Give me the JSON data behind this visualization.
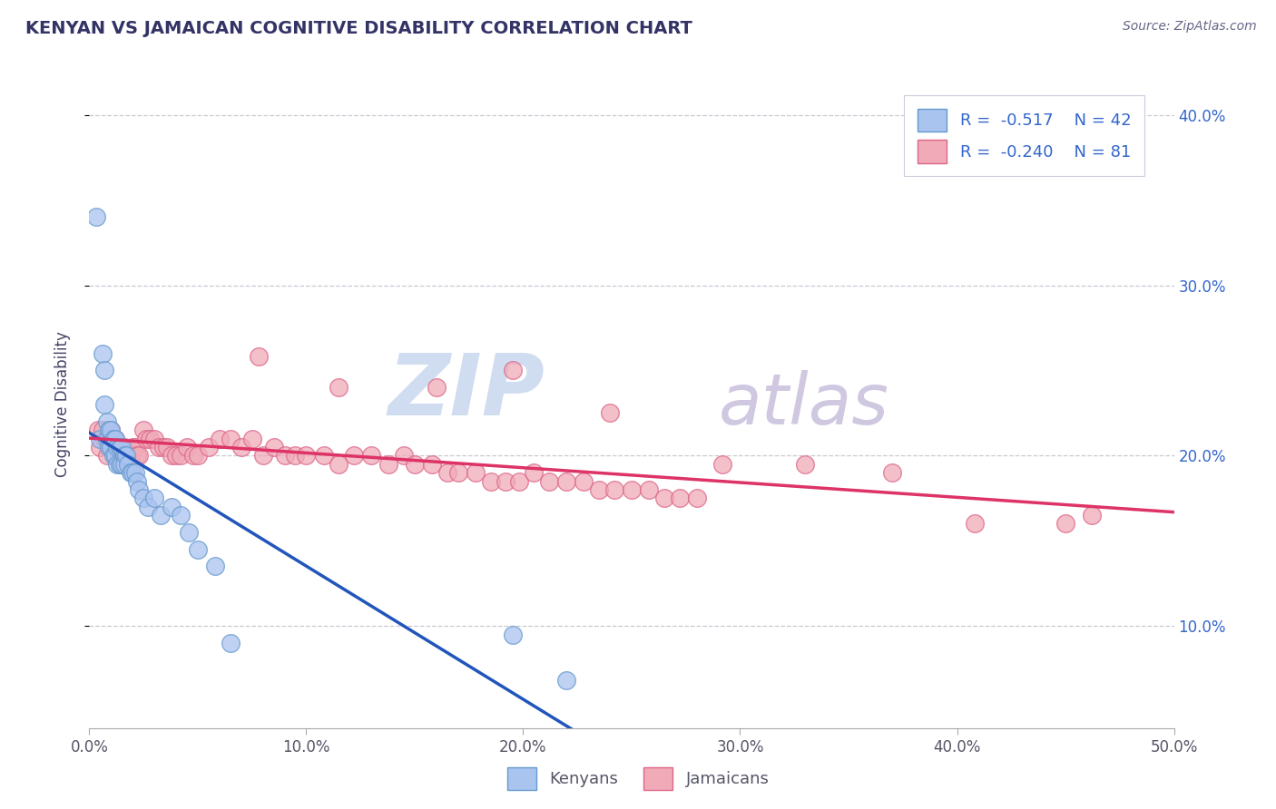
{
  "title": "KENYAN VS JAMAICAN COGNITIVE DISABILITY CORRELATION CHART",
  "source": "Source: ZipAtlas.com",
  "ylabel": "Cognitive Disability",
  "xlim": [
    0.0,
    0.5
  ],
  "ylim": [
    0.04,
    0.42
  ],
  "xticks": [
    0.0,
    0.1,
    0.2,
    0.3,
    0.4,
    0.5
  ],
  "xtick_labels": [
    "0.0%",
    "10.0%",
    "20.0%",
    "30.0%",
    "40.0%",
    "50.0%"
  ],
  "yticks": [
    0.1,
    0.2,
    0.3,
    0.4
  ],
  "ytick_labels": [
    "10.0%",
    "20.0%",
    "30.0%",
    "40.0%"
  ],
  "grid_color": "#c8c8d4",
  "background_color": "#ffffff",
  "kenyan_color": "#aac4f0",
  "jamaican_color": "#f0aab8",
  "kenyan_edge": "#6699cc",
  "jamaican_edge": "#dd6688",
  "regression_kenyan_color": "#2255bb",
  "regression_jamaican_color": "#dd3366",
  "regression_extension_color": "#99bbdd",
  "legend_r_kenyan": "R =  -0.517",
  "legend_n_kenyan": "N = 42",
  "legend_r_jamaican": "R =  -0.240",
  "legend_n_jamaican": "N = 81",
  "kenyan_x": [
    0.003,
    0.005,
    0.006,
    0.007,
    0.007,
    0.008,
    0.008,
    0.009,
    0.009,
    0.01,
    0.01,
    0.011,
    0.011,
    0.012,
    0.012,
    0.013,
    0.013,
    0.014,
    0.014,
    0.015,
    0.015,
    0.016,
    0.016,
    0.017,
    0.018,
    0.019,
    0.02,
    0.021,
    0.022,
    0.023,
    0.025,
    0.027,
    0.03,
    0.033,
    0.038,
    0.042,
    0.046,
    0.05,
    0.058,
    0.065,
    0.195,
    0.22
  ],
  "kenyan_y": [
    0.34,
    0.21,
    0.26,
    0.25,
    0.23,
    0.22,
    0.21,
    0.215,
    0.205,
    0.215,
    0.205,
    0.21,
    0.2,
    0.21,
    0.2,
    0.205,
    0.195,
    0.205,
    0.195,
    0.205,
    0.195,
    0.2,
    0.195,
    0.2,
    0.195,
    0.19,
    0.19,
    0.19,
    0.185,
    0.18,
    0.175,
    0.17,
    0.175,
    0.165,
    0.17,
    0.165,
    0.155,
    0.145,
    0.135,
    0.09,
    0.095,
    0.068
  ],
  "jamaican_x": [
    0.004,
    0.005,
    0.006,
    0.007,
    0.008,
    0.008,
    0.009,
    0.01,
    0.011,
    0.012,
    0.012,
    0.013,
    0.014,
    0.015,
    0.016,
    0.017,
    0.018,
    0.019,
    0.02,
    0.021,
    0.022,
    0.023,
    0.025,
    0.026,
    0.028,
    0.03,
    0.032,
    0.034,
    0.036,
    0.038,
    0.04,
    0.042,
    0.045,
    0.048,
    0.05,
    0.055,
    0.06,
    0.065,
    0.07,
    0.075,
    0.08,
    0.085,
    0.09,
    0.095,
    0.1,
    0.108,
    0.115,
    0.122,
    0.13,
    0.138,
    0.145,
    0.15,
    0.158,
    0.165,
    0.17,
    0.178,
    0.185,
    0.192,
    0.198,
    0.205,
    0.212,
    0.22,
    0.228,
    0.235,
    0.242,
    0.25,
    0.258,
    0.265,
    0.272,
    0.28,
    0.078,
    0.115,
    0.16,
    0.195,
    0.24,
    0.292,
    0.33,
    0.37,
    0.408,
    0.45,
    0.462
  ],
  "jamaican_y": [
    0.215,
    0.205,
    0.215,
    0.21,
    0.21,
    0.2,
    0.21,
    0.215,
    0.205,
    0.21,
    0.2,
    0.205,
    0.205,
    0.205,
    0.205,
    0.2,
    0.2,
    0.2,
    0.205,
    0.205,
    0.2,
    0.2,
    0.215,
    0.21,
    0.21,
    0.21,
    0.205,
    0.205,
    0.205,
    0.2,
    0.2,
    0.2,
    0.205,
    0.2,
    0.2,
    0.205,
    0.21,
    0.21,
    0.205,
    0.21,
    0.2,
    0.205,
    0.2,
    0.2,
    0.2,
    0.2,
    0.195,
    0.2,
    0.2,
    0.195,
    0.2,
    0.195,
    0.195,
    0.19,
    0.19,
    0.19,
    0.185,
    0.185,
    0.185,
    0.19,
    0.185,
    0.185,
    0.185,
    0.18,
    0.18,
    0.18,
    0.18,
    0.175,
    0.175,
    0.175,
    0.258,
    0.24,
    0.24,
    0.25,
    0.225,
    0.195,
    0.195,
    0.19,
    0.16,
    0.16,
    0.165
  ],
  "watermark_zip": "ZIP",
  "watermark_atlas": "atlas",
  "watermark_color_zip": "#d0ddf0",
  "watermark_color_atlas": "#d0c8e0",
  "title_color": "#333366",
  "axis_label_color": "#444466",
  "tick_color": "#555566",
  "source_color": "#666688",
  "legend_text_color": "#3366cc",
  "bottom_labels": [
    "Kenyans",
    "Jamaicans"
  ],
  "bottom_label_colors": [
    "#6699cc",
    "#cc6688"
  ]
}
